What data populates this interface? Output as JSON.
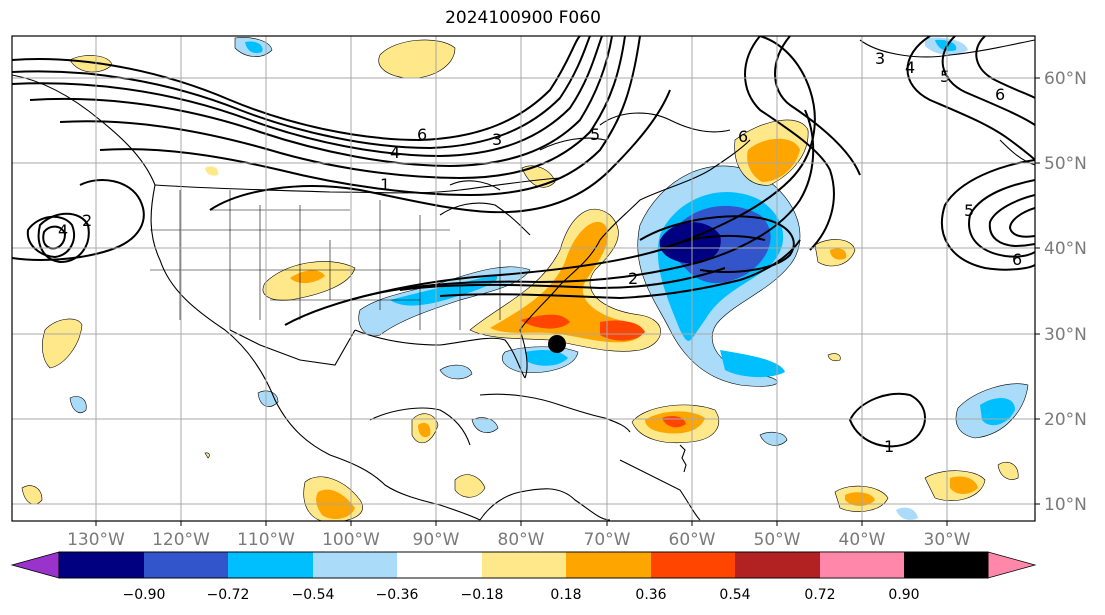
{
  "title": "2024100900 F060",
  "lon_labels": [
    "130°W",
    "120°W",
    "110°W",
    "100°W",
    "90°W",
    "80°W",
    "70°W",
    "60°W",
    "50°W",
    "40°W",
    "30°W"
  ],
  "lat_labels": [
    "60°N",
    "50°N",
    "40°N",
    "30°N",
    "20°N",
    "10°N"
  ],
  "colorbar": {
    "ticks": [
      "−0.90",
      "−0.72",
      "−0.54",
      "−0.36",
      "−0.18",
      "0.18",
      "0.36",
      "0.54",
      "0.72",
      "0.90"
    ],
    "colors": [
      "#9933cc",
      "#000080",
      "#3355cc",
      "#00bfff",
      "#aadcfa",
      "#ffffff",
      "#ffe88a",
      "#ffa500",
      "#ff4500",
      "#b22222",
      "#ff88aa"
    ]
  },
  "contour_labels": [
    "6",
    "4",
    "3",
    "5",
    "1",
    "2",
    "4",
    "5",
    "6",
    "3",
    "6",
    "4",
    "2",
    "1",
    "5",
    "6"
  ],
  "marker": "storm-position-dot"
}
